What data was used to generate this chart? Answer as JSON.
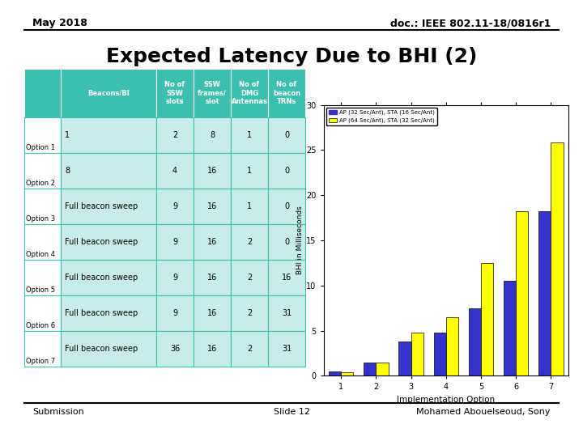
{
  "title": "Expected Latency Due to BHI (2)",
  "header_left": "May 2018",
  "header_right": "doc.: IEEE 802.11-18/0816r1",
  "footer_left": "Submission",
  "footer_center": "Slide 12",
  "footer_right": "Mohamed Abouelseoud, Sony",
  "table_header_color": "#3DBFAD",
  "table_row_color": "#C8EDE9",
  "table_header_text_color": "#FFFFFF",
  "table_cols": [
    "Beacons/BI",
    "No of\nSSW\nslots",
    "SSW\nframes/\nslot",
    "No of\nDMG\nAntennas",
    "No of\nbeacon\nTRNs"
  ],
  "table_rows": [
    [
      "1",
      "2",
      "8",
      "1",
      "0"
    ],
    [
      "8",
      "4",
      "16",
      "1",
      "0"
    ],
    [
      "Full beacon sweep",
      "9",
      "16",
      "1",
      "0"
    ],
    [
      "Full beacon sweep",
      "9",
      "16",
      "2",
      "0"
    ],
    [
      "Full beacon sweep",
      "9",
      "16",
      "2",
      "16"
    ],
    [
      "Full beacon sweep",
      "9",
      "16",
      "2",
      "31"
    ],
    [
      "Full beacon sweep",
      "36",
      "16",
      "2",
      "31"
    ]
  ],
  "row_labels": [
    "Option 1",
    "Option 2",
    "Option 3",
    "Option 4",
    "Option 5",
    "Option 6",
    "Option 7"
  ],
  "bar_blue_values": [
    0.5,
    1.5,
    3.8,
    4.8,
    7.5,
    10.5,
    18.2
  ],
  "bar_yellow_values": [
    0.4,
    1.5,
    4.8,
    6.5,
    12.5,
    18.2,
    25.8
  ],
  "bar_blue_color": "#3333CC",
  "bar_yellow_color": "#FFFF00",
  "bar_edgecolor": "#000000",
  "x_labels": [
    "1",
    "2",
    "3",
    "4",
    "5",
    "6",
    "7"
  ],
  "xlabel": "Implementation Option",
  "ylabel": "BHI in Milliseconds",
  "ylim": [
    0,
    30
  ],
  "yticks": [
    0,
    5,
    10,
    15,
    20,
    25,
    30
  ],
  "legend_labels": [
    "AP (32 Sec/Ant), STA (16 Sec/Ant)",
    "AP (64 Sec/Ant), STA (32 Sec/Ant)"
  ],
  "bg_color": "#FFFFFF"
}
